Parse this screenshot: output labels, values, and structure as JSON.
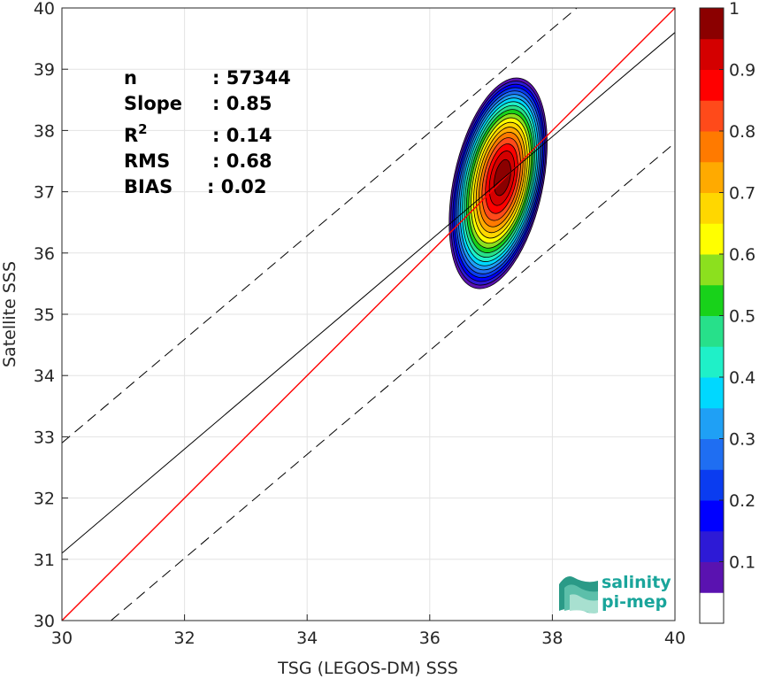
{
  "chart_data": {
    "type": "scatter",
    "xlabel": "TSG (LEGOS-DM) SSS",
    "ylabel": "Satellite SSS",
    "xlim": [
      30,
      40
    ],
    "ylim": [
      30,
      40
    ],
    "x_ticks": [
      30,
      32,
      34,
      36,
      38,
      40
    ],
    "y_ticks": [
      30,
      31,
      32,
      33,
      34,
      35,
      36,
      37,
      38,
      39,
      40
    ],
    "grid": true,
    "stats": [
      {
        "label": "n",
        "value": ": 57344"
      },
      {
        "label": "Slope",
        "value": ": 0.85"
      },
      {
        "label": "R",
        "sup": "2",
        "value": ": 0.14"
      },
      {
        "label": "RMS",
        "value": ": 0.68"
      },
      {
        "label": "BIAS",
        "value": ": 0.02"
      }
    ],
    "lines": [
      {
        "kind": "identity",
        "color": "#ff0000",
        "points": [
          [
            30,
            30
          ],
          [
            40,
            40
          ]
        ]
      },
      {
        "kind": "regression",
        "color": "#000000",
        "points": [
          [
            30,
            31.1
          ],
          [
            40,
            39.6
          ]
        ]
      },
      {
        "kind": "upper-bound",
        "color": "#000000",
        "dashed": true,
        "points": [
          [
            30,
            32.9
          ],
          [
            38.4,
            40
          ]
        ]
      },
      {
        "kind": "lower-bound",
        "color": "#000000",
        "dashed": true,
        "points": [
          [
            30.8,
            30
          ],
          [
            40,
            37.8
          ]
        ]
      }
    ],
    "density": {
      "center": [
        37.2,
        37.25
      ],
      "contour_levels": [
        0.05,
        0.1,
        0.15,
        0.2,
        0.25,
        0.3,
        0.35,
        0.4,
        0.45,
        0.5,
        0.55,
        0.6,
        0.65,
        0.7,
        0.75,
        0.8,
        0.85,
        0.9,
        0.95
      ],
      "extent": {
        "x": [
          36.4,
          37.8
        ],
        "y": [
          35.6,
          38.9
        ]
      }
    },
    "colorbar": {
      "ticks": [
        "0.1",
        "0.2",
        "0.3",
        "0.4",
        "0.5",
        "0.6",
        "0.7",
        "0.8",
        "0.9",
        "1"
      ],
      "tick_values": [
        0.1,
        0.2,
        0.3,
        0.4,
        0.5,
        0.6,
        0.7,
        0.8,
        0.9,
        1.0
      ],
      "colors": [
        "#ffffff",
        "#5a12b0",
        "#2d1ad6",
        "#0000ff",
        "#0a3cf0",
        "#1f6ef2",
        "#1fa0f5",
        "#00d8ff",
        "#1ff0c8",
        "#27e08a",
        "#18d21a",
        "#8ce01e",
        "#ffff00",
        "#ffd700",
        "#ffaa00",
        "#ff7a00",
        "#ff4a1a",
        "#ff0000",
        "#d40000",
        "#8b0000"
      ]
    }
  },
  "logo": {
    "line1": "salinity",
    "line2": "pi-mep"
  }
}
